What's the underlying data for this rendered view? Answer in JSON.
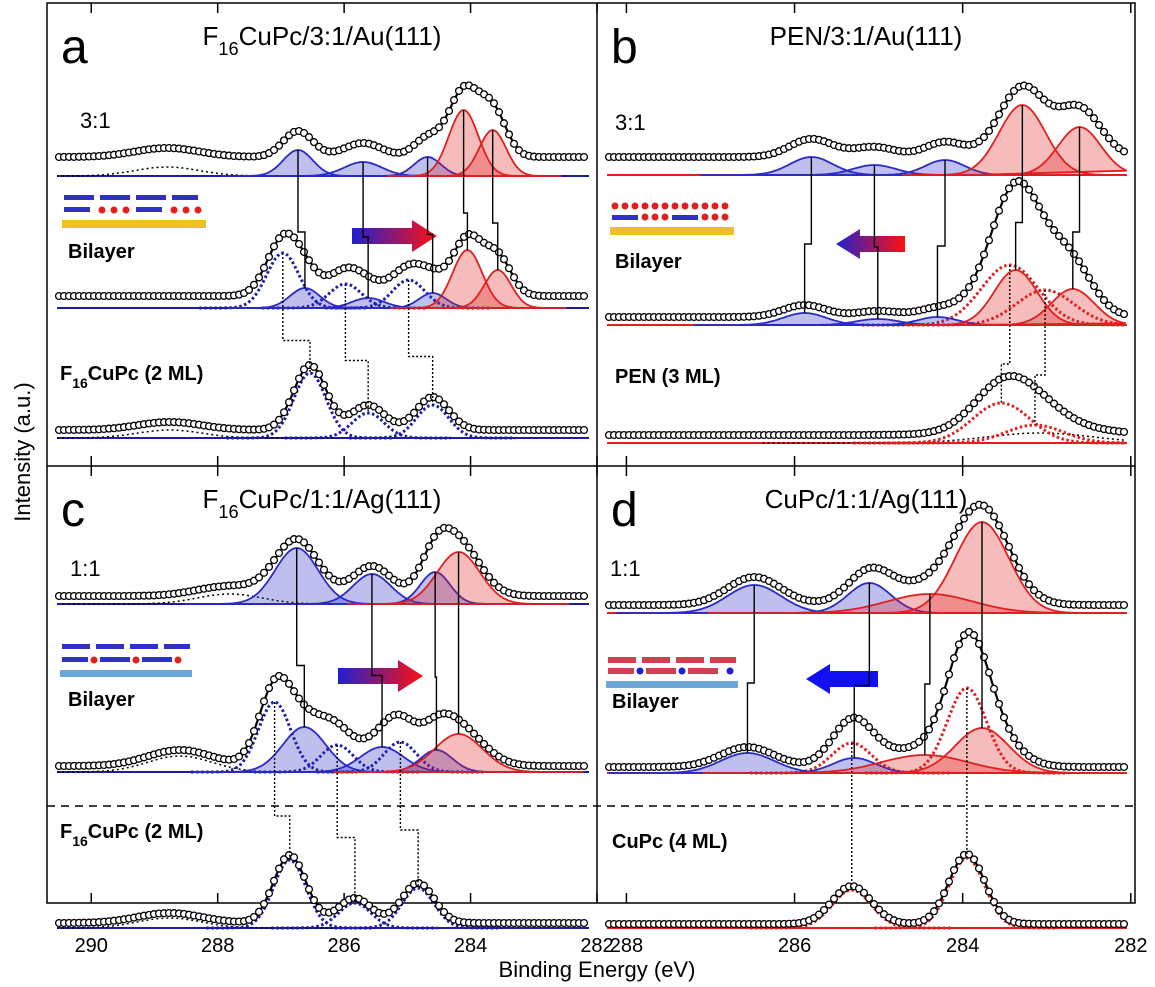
{
  "xlabel": "Binding Energy (eV)",
  "ylabel": "Intensity (a.u.)",
  "chart_data": [
    {
      "type": "spectra",
      "letter": "a",
      "title": "F16CuPc/3:1/Au(111)",
      "xlim": [
        290.7,
        282
      ],
      "color": "#1c1ca0",
      "spectra": [
        {
          "label": "3:1",
          "background": 19,
          "components": [
            {
              "center": 288.8,
              "height": 9,
              "width": 1.2,
              "color": "#000000",
              "style": "dot"
            },
            {
              "center": 286.73,
              "height": 26,
              "width": 0.55,
              "color": "#2a2ac8",
              "style": "fill"
            },
            {
              "center": 285.7,
              "height": 14,
              "width": 0.7,
              "color": "#2a2ac8",
              "style": "fill"
            },
            {
              "center": 284.68,
              "height": 19,
              "width": 0.5,
              "color": "#2a2ac8",
              "style": "fill"
            },
            {
              "center": 284.11,
              "height": 66,
              "width": 0.55,
              "color": "#e02020",
              "style": "fill"
            },
            {
              "center": 283.65,
              "height": 46,
              "width": 0.5,
              "color": "#e02020",
              "style": "fill"
            }
          ]
        },
        {
          "label": "Bilayer",
          "background": 12,
          "components": [
            {
              "center": 286.97,
              "height": 55,
              "width": 0.6,
              "color": "#1c1cb0",
              "style": "dot"
            },
            {
              "center": 285.98,
              "height": 24,
              "width": 0.6,
              "color": "#1c1cb0",
              "style": "dot"
            },
            {
              "center": 284.98,
              "height": 28,
              "width": 0.6,
              "color": "#1c1cb0",
              "style": "dot"
            },
            {
              "center": 286.62,
              "height": 20,
              "width": 0.55,
              "color": "#2a2ac8",
              "style": "fill"
            },
            {
              "center": 285.62,
              "height": 10,
              "width": 0.6,
              "color": "#2a2ac8",
              "style": "fill"
            },
            {
              "center": 284.6,
              "height": 15,
              "width": 0.5,
              "color": "#2a2ac8",
              "style": "fill"
            },
            {
              "center": 284.05,
              "height": 58,
              "width": 0.55,
              "color": "#e02020",
              "style": "fill"
            },
            {
              "center": 283.57,
              "height": 38,
              "width": 0.5,
              "color": "#e02020",
              "style": "fill"
            }
          ]
        },
        {
          "label": "F16CuPc (2 ML)",
          "background": 8,
          "components": [
            {
              "center": 288.76,
              "height": 8,
              "width": 1.2,
              "color": "#000000",
              "style": "dot"
            },
            {
              "center": 286.54,
              "height": 65,
              "width": 0.6,
              "color": "#1c1cb0",
              "style": "dot"
            },
            {
              "center": 285.62,
              "height": 25,
              "width": 0.6,
              "color": "#1c1cb0",
              "style": "dot"
            },
            {
              "center": 284.6,
              "height": 33,
              "width": 0.6,
              "color": "#1c1cb0",
              "style": "dot"
            }
          ]
        }
      ]
    },
    {
      "type": "spectra",
      "letter": "b",
      "title": "PEN/3:1/Au(111)",
      "xlim": [
        288.35,
        281.95
      ],
      "color": "#e02020",
      "spectra": [
        {
          "label": "3:1",
          "background": 18,
          "components": [
            {
              "center": 285.8,
              "height": 18,
              "width": 0.6,
              "color": "#2a2ac8",
              "style": "fill"
            },
            {
              "center": 285.05,
              "height": 10,
              "width": 0.6,
              "color": "#2a2ac8",
              "style": "fill"
            },
            {
              "center": 284.21,
              "height": 15,
              "width": 0.55,
              "color": "#2a2ac8",
              "style": "fill"
            },
            {
              "center": 283.29,
              "height": 70,
              "width": 0.65,
              "color": "#e02020",
              "style": "fill"
            },
            {
              "center": 282.61,
              "height": 48,
              "width": 0.6,
              "color": "#e02020",
              "style": "fill"
            }
          ]
        },
        {
          "label": "Bilayer",
          "background": 8,
          "components": [
            {
              "center": 283.44,
              "height": 60,
              "width": 0.8,
              "color": "#e02020",
              "style": "dot"
            },
            {
              "center": 283.02,
              "height": 35,
              "width": 0.8,
              "color": "#e02020",
              "style": "dot"
            },
            {
              "center": 285.88,
              "height": 12,
              "width": 0.6,
              "color": "#2a2ac8",
              "style": "fill"
            },
            {
              "center": 285.01,
              "height": 6,
              "width": 0.6,
              "color": "#2a2ac8",
              "style": "fill"
            },
            {
              "center": 284.3,
              "height": 8,
              "width": 0.55,
              "color": "#2a2ac8",
              "style": "fill"
            },
            {
              "center": 283.37,
              "height": 55,
              "width": 0.6,
              "color": "#e02020",
              "style": "fill"
            },
            {
              "center": 282.69,
              "height": 36,
              "width": 0.6,
              "color": "#e02020",
              "style": "fill"
            }
          ]
        },
        {
          "label": "PEN (3 ML)",
          "background": 8,
          "components": [
            {
              "center": 283.08,
              "height": 10,
              "width": 1.5,
              "color": "#000000",
              "style": "dot"
            },
            {
              "center": 283.54,
              "height": 40,
              "width": 0.8,
              "color": "#e02020",
              "style": "dot"
            },
            {
              "center": 283.14,
              "height": 18,
              "width": 0.8,
              "color": "#e02020",
              "style": "dot"
            }
          ]
        }
      ]
    },
    {
      "type": "spectra",
      "letter": "c",
      "title": "F16CuPc/1:1/Ag(111)",
      "xlim": [
        290.7,
        282
      ],
      "xticks": [
        290,
        288,
        286,
        284,
        282
      ],
      "color": "#1c1ca0",
      "spectra": [
        {
          "label": "1:1",
          "background": 8,
          "components": [
            {
              "center": 287.81,
              "height": 10,
              "width": 1.2,
              "color": "#000000",
              "style": "dot"
            },
            {
              "center": 286.75,
              "height": 56,
              "width": 0.8,
              "color": "#2a2ac8",
              "style": "fill"
            },
            {
              "center": 285.56,
              "height": 30,
              "width": 0.7,
              "color": "#2a2ac8",
              "style": "fill"
            },
            {
              "center": 284.56,
              "height": 32,
              "width": 0.55,
              "color": "#2a2ac8",
              "style": "fill"
            },
            {
              "center": 284.19,
              "height": 52,
              "width": 0.8,
              "color": "#e02020",
              "style": "fill"
            }
          ]
        },
        {
          "label": "Bilayer",
          "background": 6,
          "components": [
            {
              "center": 288.6,
              "height": 16,
              "width": 1.2,
              "color": "#000000",
              "style": "dot"
            },
            {
              "center": 287.1,
              "height": 70,
              "width": 0.6,
              "color": "#1c1cb0",
              "style": "dot"
            },
            {
              "center": 286.11,
              "height": 27,
              "width": 0.6,
              "color": "#1c1cb0",
              "style": "dot"
            },
            {
              "center": 285.11,
              "height": 30,
              "width": 0.6,
              "color": "#1c1cb0",
              "style": "dot"
            },
            {
              "center": 286.63,
              "height": 45,
              "width": 0.8,
              "color": "#2a2ac8",
              "style": "fill"
            },
            {
              "center": 285.4,
              "height": 25,
              "width": 0.8,
              "color": "#2a2ac8",
              "style": "fill"
            },
            {
              "center": 284.54,
              "height": 22,
              "width": 0.6,
              "color": "#2a2ac8",
              "style": "fill"
            },
            {
              "center": 284.19,
              "height": 38,
              "width": 0.9,
              "color": "#e02020",
              "style": "fill"
            }
          ]
        },
        {
          "label": "F16CuPc (2 ML)",
          "background": 5,
          "components": [
            {
              "center": 288.76,
              "height": 10,
              "width": 1.2,
              "color": "#000000",
              "style": "dot"
            },
            {
              "center": 286.86,
              "height": 68,
              "width": 0.6,
              "color": "#1c1cb0",
              "style": "dot"
            },
            {
              "center": 285.83,
              "height": 25,
              "width": 0.6,
              "color": "#1c1cb0",
              "style": "dot"
            },
            {
              "center": 284.83,
              "height": 40,
              "width": 0.6,
              "color": "#1c1cb0",
              "style": "dot"
            }
          ]
        }
      ]
    },
    {
      "type": "spectra",
      "letter": "d",
      "title": "CuPc/1:1/Ag(111)",
      "xlim": [
        288.35,
        281.95
      ],
      "xticks": [
        288,
        286,
        284,
        282
      ],
      "color": "#e02020",
      "spectra": [
        {
          "label": "1:1",
          "background": 8,
          "components": [
            {
              "center": 286.48,
              "height": 28,
              "width": 0.75,
              "color": "#2a2ac8",
              "style": "fill"
            },
            {
              "center": 285.11,
              "height": 30,
              "width": 0.6,
              "color": "#2a2ac8",
              "style": "fill"
            },
            {
              "center": 284.39,
              "height": 19,
              "width": 1.2,
              "color": "#e02020",
              "style": "fill"
            },
            {
              "center": 283.77,
              "height": 91,
              "width": 0.75,
              "color": "#e02020",
              "style": "fill"
            }
          ]
        },
        {
          "label": "Bilayer",
          "background": 6,
          "components": [
            {
              "center": 285.32,
              "height": 30,
              "width": 0.55,
              "color": "#e02020",
              "style": "dot"
            },
            {
              "center": 283.95,
              "height": 85,
              "width": 0.55,
              "color": "#e02020",
              "style": "dot"
            },
            {
              "center": 286.56,
              "height": 20,
              "width": 0.75,
              "color": "#2a2ac8",
              "style": "fill"
            },
            {
              "center": 285.29,
              "height": 15,
              "width": 0.6,
              "color": "#2a2ac8",
              "style": "fill"
            },
            {
              "center": 284.45,
              "height": 18,
              "width": 1.2,
              "color": "#e02020",
              "style": "fill"
            },
            {
              "center": 283.77,
              "height": 45,
              "width": 0.75,
              "color": "#e02020",
              "style": "fill"
            }
          ]
        },
        {
          "label": "CuPc (4 ML)",
          "background": 4,
          "components": [
            {
              "center": 285.32,
              "height": 38,
              "width": 0.55,
              "color": "#e02020",
              "style": "dot"
            },
            {
              "center": 283.95,
              "height": 70,
              "width": 0.5,
              "color": "#e02020",
              "style": "dot"
            }
          ]
        }
      ]
    }
  ]
}
